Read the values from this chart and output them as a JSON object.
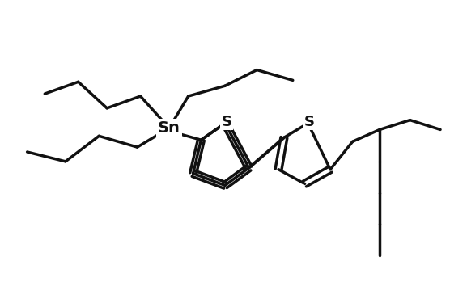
{
  "bg_color": "#ffffff",
  "line_color": "#111111",
  "line_width": 2.5,
  "figsize": [
    5.56,
    3.8
  ],
  "dpi": 100,
  "Sn_label": "Sn",
  "S1_label": "S",
  "S2_label": "S",
  "font_size_Sn": 14,
  "font_size_S": 13
}
